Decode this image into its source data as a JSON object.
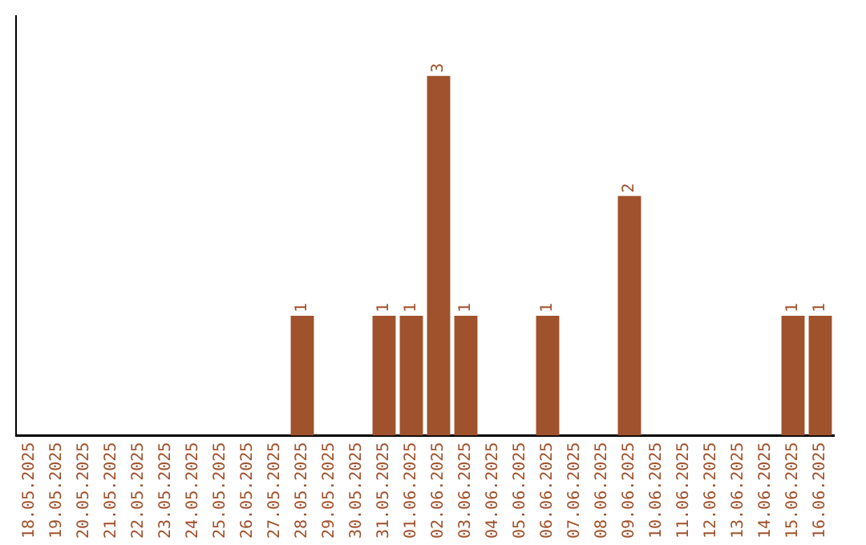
{
  "chart_data": {
    "type": "bar",
    "categories": [
      "18.05.2025",
      "19.05.2025",
      "20.05.2025",
      "21.05.2025",
      "22.05.2025",
      "23.05.2025",
      "24.05.2025",
      "25.05.2025",
      "26.05.2025",
      "27.05.2025",
      "28.05.2025",
      "29.05.2025",
      "30.05.2025",
      "31.05.2025",
      "01.06.2025",
      "02.06.2025",
      "03.06.2025",
      "04.06.2025",
      "05.06.2025",
      "06.06.2025",
      "07.06.2025",
      "08.06.2025",
      "09.06.2025",
      "10.06.2025",
      "11.06.2025",
      "12.06.2025",
      "13.06.2025",
      "14.06.2025",
      "15.06.2025",
      "16.06.2025"
    ],
    "values": [
      0,
      0,
      0,
      0,
      0,
      0,
      0,
      0,
      0,
      0,
      1,
      0,
      0,
      1,
      1,
      3,
      1,
      0,
      0,
      1,
      0,
      0,
      2,
      0,
      0,
      0,
      0,
      0,
      1,
      1
    ],
    "value_labels": [
      null,
      null,
      null,
      null,
      null,
      null,
      null,
      null,
      null,
      null,
      "1",
      null,
      null,
      "1",
      "1",
      "3",
      "1",
      null,
      null,
      "1",
      null,
      null,
      "2",
      null,
      null,
      null,
      null,
      null,
      "1",
      "1"
    ],
    "color": "#a0522d",
    "grid": false,
    "legend": false,
    "tick_labels": "x"
  }
}
